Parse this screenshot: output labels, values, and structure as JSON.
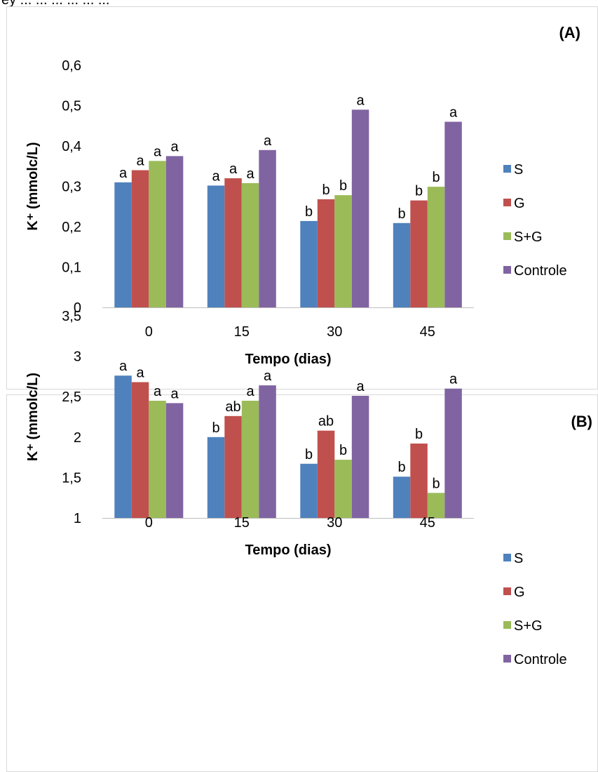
{
  "caption_top": "ey ... ... ... ... ... ...",
  "legend": {
    "entries": [
      "S",
      "G",
      "S+G",
      "Controle"
    ],
    "colors": [
      "#4F81BD",
      "#C0504D",
      "#9BBB59",
      "#8064A2"
    ]
  },
  "chart_data": [
    {
      "type": "bar",
      "panel_label": "(A)",
      "categories": [
        "0",
        "15",
        "30",
        "45"
      ],
      "xlabel": "Tempo (dias)",
      "ylabel": "K⁺ (mmolc/L)",
      "ylim": [
        0,
        0.6
      ],
      "yticks": [
        "0",
        "0,1",
        "0,2",
        "0,3",
        "0,4",
        "0,5",
        "0,6"
      ],
      "ytick_values": [
        0,
        0.1,
        0.2,
        0.3,
        0.4,
        0.5,
        0.6
      ],
      "grid": false,
      "legend_position": "right",
      "series": [
        {
          "name": "S",
          "values": [
            0.31,
            0.302,
            0.214,
            0.209
          ],
          "labels": [
            "a",
            "a",
            "b",
            "b"
          ]
        },
        {
          "name": "G",
          "values": [
            0.34,
            0.32,
            0.268,
            0.265
          ],
          "labels": [
            "a",
            "a",
            "b",
            "b"
          ]
        },
        {
          "name": "S+G",
          "values": [
            0.363,
            0.308,
            0.278,
            0.299
          ],
          "labels": [
            "a",
            "a",
            "b",
            "b"
          ]
        },
        {
          "name": "Controle",
          "values": [
            0.375,
            0.39,
            0.49,
            0.46
          ],
          "labels": [
            "a",
            "a",
            "a",
            "a"
          ]
        }
      ]
    },
    {
      "type": "bar",
      "panel_label": "(B)",
      "categories": [
        "0",
        "15",
        "30",
        "45"
      ],
      "xlabel": "Tempo (dias)",
      "ylabel": "K⁺ (mmolc/L)",
      "ylim": [
        1,
        3.5
      ],
      "yticks": [
        "1",
        "1,5",
        "2",
        "2,5",
        "3",
        "3,5"
      ],
      "ytick_values": [
        1,
        1.5,
        2,
        2.5,
        3,
        3.5
      ],
      "grid": false,
      "legend_position": "right",
      "series": [
        {
          "name": "S",
          "values": [
            2.76,
            2.0,
            1.67,
            1.51
          ],
          "labels": [
            "a",
            "b",
            "b",
            "b"
          ]
        },
        {
          "name": "G",
          "values": [
            2.68,
            2.26,
            2.08,
            1.92
          ],
          "labels": [
            "a",
            "ab",
            "ab",
            "b"
          ]
        },
        {
          "name": "S+G",
          "values": [
            2.45,
            2.45,
            1.72,
            1.31
          ],
          "labels": [
            "a",
            "a",
            "b",
            "b"
          ]
        },
        {
          "name": "Controle",
          "values": [
            2.42,
            2.64,
            2.51,
            2.6
          ],
          "labels": [
            "a",
            "a",
            "a",
            "a"
          ]
        }
      ]
    }
  ]
}
